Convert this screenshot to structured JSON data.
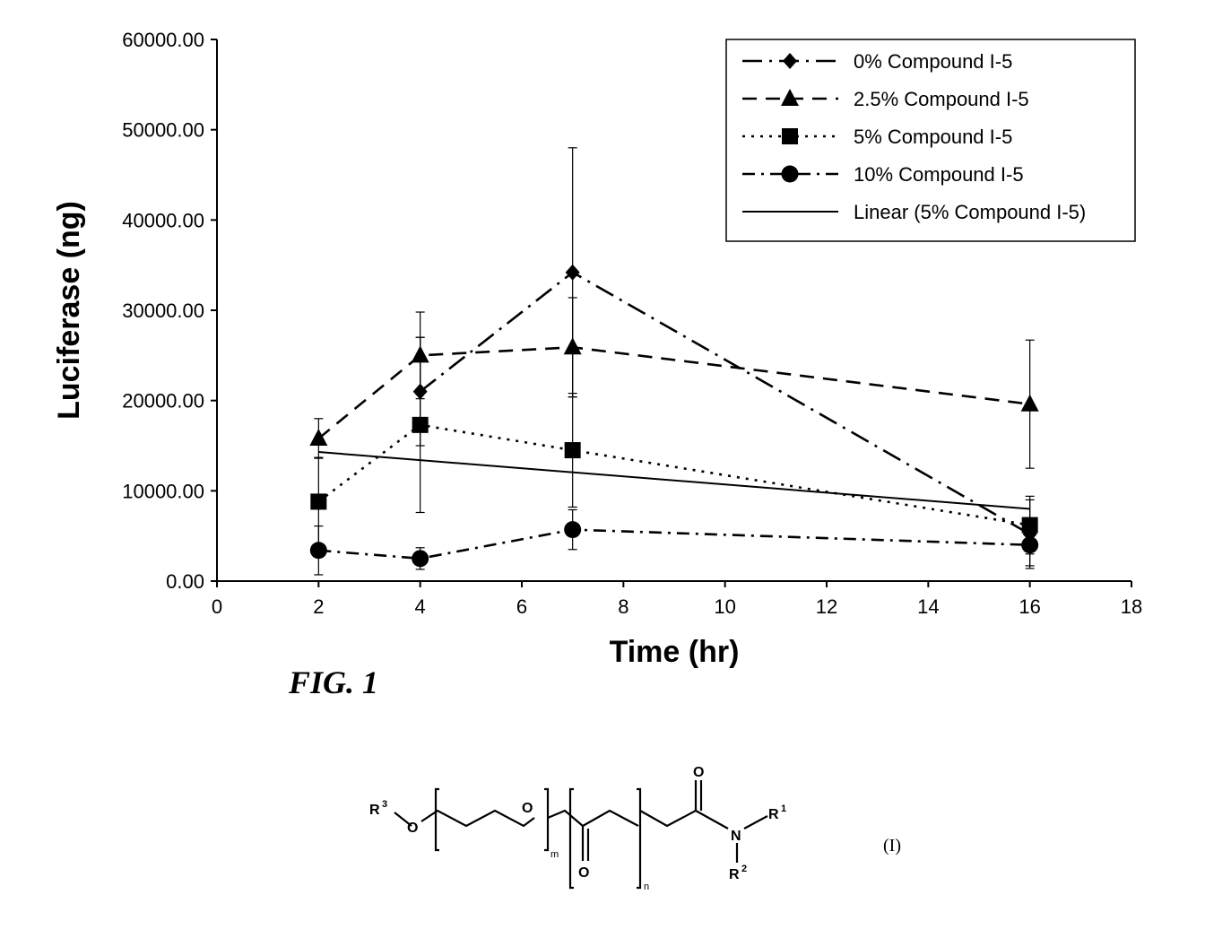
{
  "chart_data": {
    "type": "line",
    "title": "",
    "xlabel": "Time (hr)",
    "ylabel": "Luciferase (ng)",
    "xlim": [
      0,
      18
    ],
    "ylim": [
      0,
      60000
    ],
    "x_ticks": [
      "0",
      "2",
      "4",
      "6",
      "8",
      "10",
      "12",
      "14",
      "16",
      "18"
    ],
    "y_ticks": [
      "0.00",
      "10000.00",
      "20000.00",
      "30000.00",
      "40000.00",
      "50000.00",
      "60000.00"
    ],
    "grid": false,
    "legend_position": "top-right",
    "series": [
      {
        "name": "0% Compound I-5",
        "marker": "diamond",
        "line": "long-dash-dot",
        "x": [
          2,
          4,
          7,
          16
        ],
        "y": [
          null,
          21000,
          34200,
          5200
        ],
        "err": [
          null,
          6000,
          13800,
          3800
        ]
      },
      {
        "name": "2.5% Compound I-5",
        "marker": "triangle",
        "line": "dash",
        "x": [
          2,
          4,
          7,
          16
        ],
        "y": [
          15800,
          25000,
          25900,
          19600
        ],
        "err": [
          2200,
          4800,
          5500,
          7100
        ]
      },
      {
        "name": "5% Compound I-5",
        "marker": "square",
        "line": "dot",
        "x": [
          2,
          4,
          7,
          16
        ],
        "y": [
          8800,
          17300,
          14500,
          6200
        ],
        "err": [
          4900,
          9700,
          6300,
          3200
        ]
      },
      {
        "name": "10% Compound I-5",
        "marker": "circle",
        "line": "dash-dot",
        "x": [
          2,
          4,
          7,
          16
        ],
        "y": [
          3400,
          2500,
          5700,
          4000
        ],
        "err": [
          2700,
          1200,
          2200,
          2300
        ]
      },
      {
        "name": "Linear (5% Compound I-5)",
        "marker": "none",
        "line": "solid",
        "x": [
          2,
          16
        ],
        "y": [
          14300,
          8000
        ]
      }
    ]
  },
  "figure": {
    "caption": "FIG. 1",
    "structure_label": "(I)",
    "structure_atoms": {
      "r3": "R",
      "r3_sup": "3",
      "r1": "R",
      "r1_sup": "1",
      "r2": "R",
      "r2_sup": "2",
      "o": "O",
      "n": "N",
      "m_sub": "m",
      "n_sub": "n"
    }
  }
}
